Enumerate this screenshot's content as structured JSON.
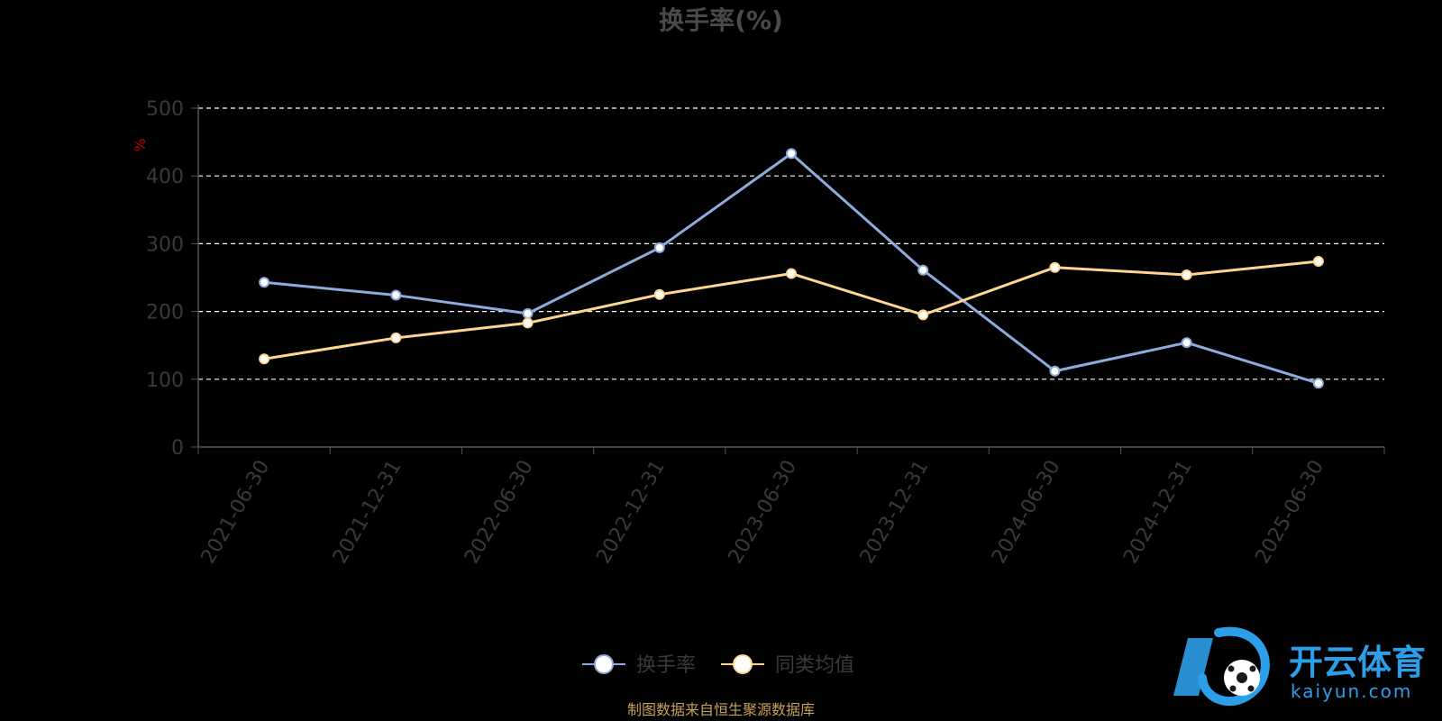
{
  "chart_data": {
    "type": "line",
    "title": "换手率(%)",
    "y_unit_label": "%",
    "ylim": [
      0,
      500
    ],
    "yticks": [
      0,
      100,
      200,
      300,
      400,
      500
    ],
    "categories": [
      "2021-06-30",
      "2021-12-31",
      "2022-06-30",
      "2022-12-31",
      "2023-06-30",
      "2023-12-31",
      "2024-06-30",
      "2024-12-31",
      "2025-06-30"
    ],
    "series": [
      {
        "name": "换手率",
        "color": "#8faadc",
        "values": [
          243,
          224,
          197,
          294,
          433,
          261,
          112,
          154,
          94
        ]
      },
      {
        "name": "同类均值",
        "color": "#ffd591",
        "values": [
          130,
          161,
          183,
          225,
          256,
          195,
          265,
          254,
          274
        ]
      }
    ],
    "grid": "dashed-horizontal",
    "legend_position": "bottom-center"
  },
  "footer": {
    "source": "制图数据来自恒生聚源数据库"
  },
  "watermark": {
    "cn": "开云体育",
    "en": "kaiyun.com"
  }
}
